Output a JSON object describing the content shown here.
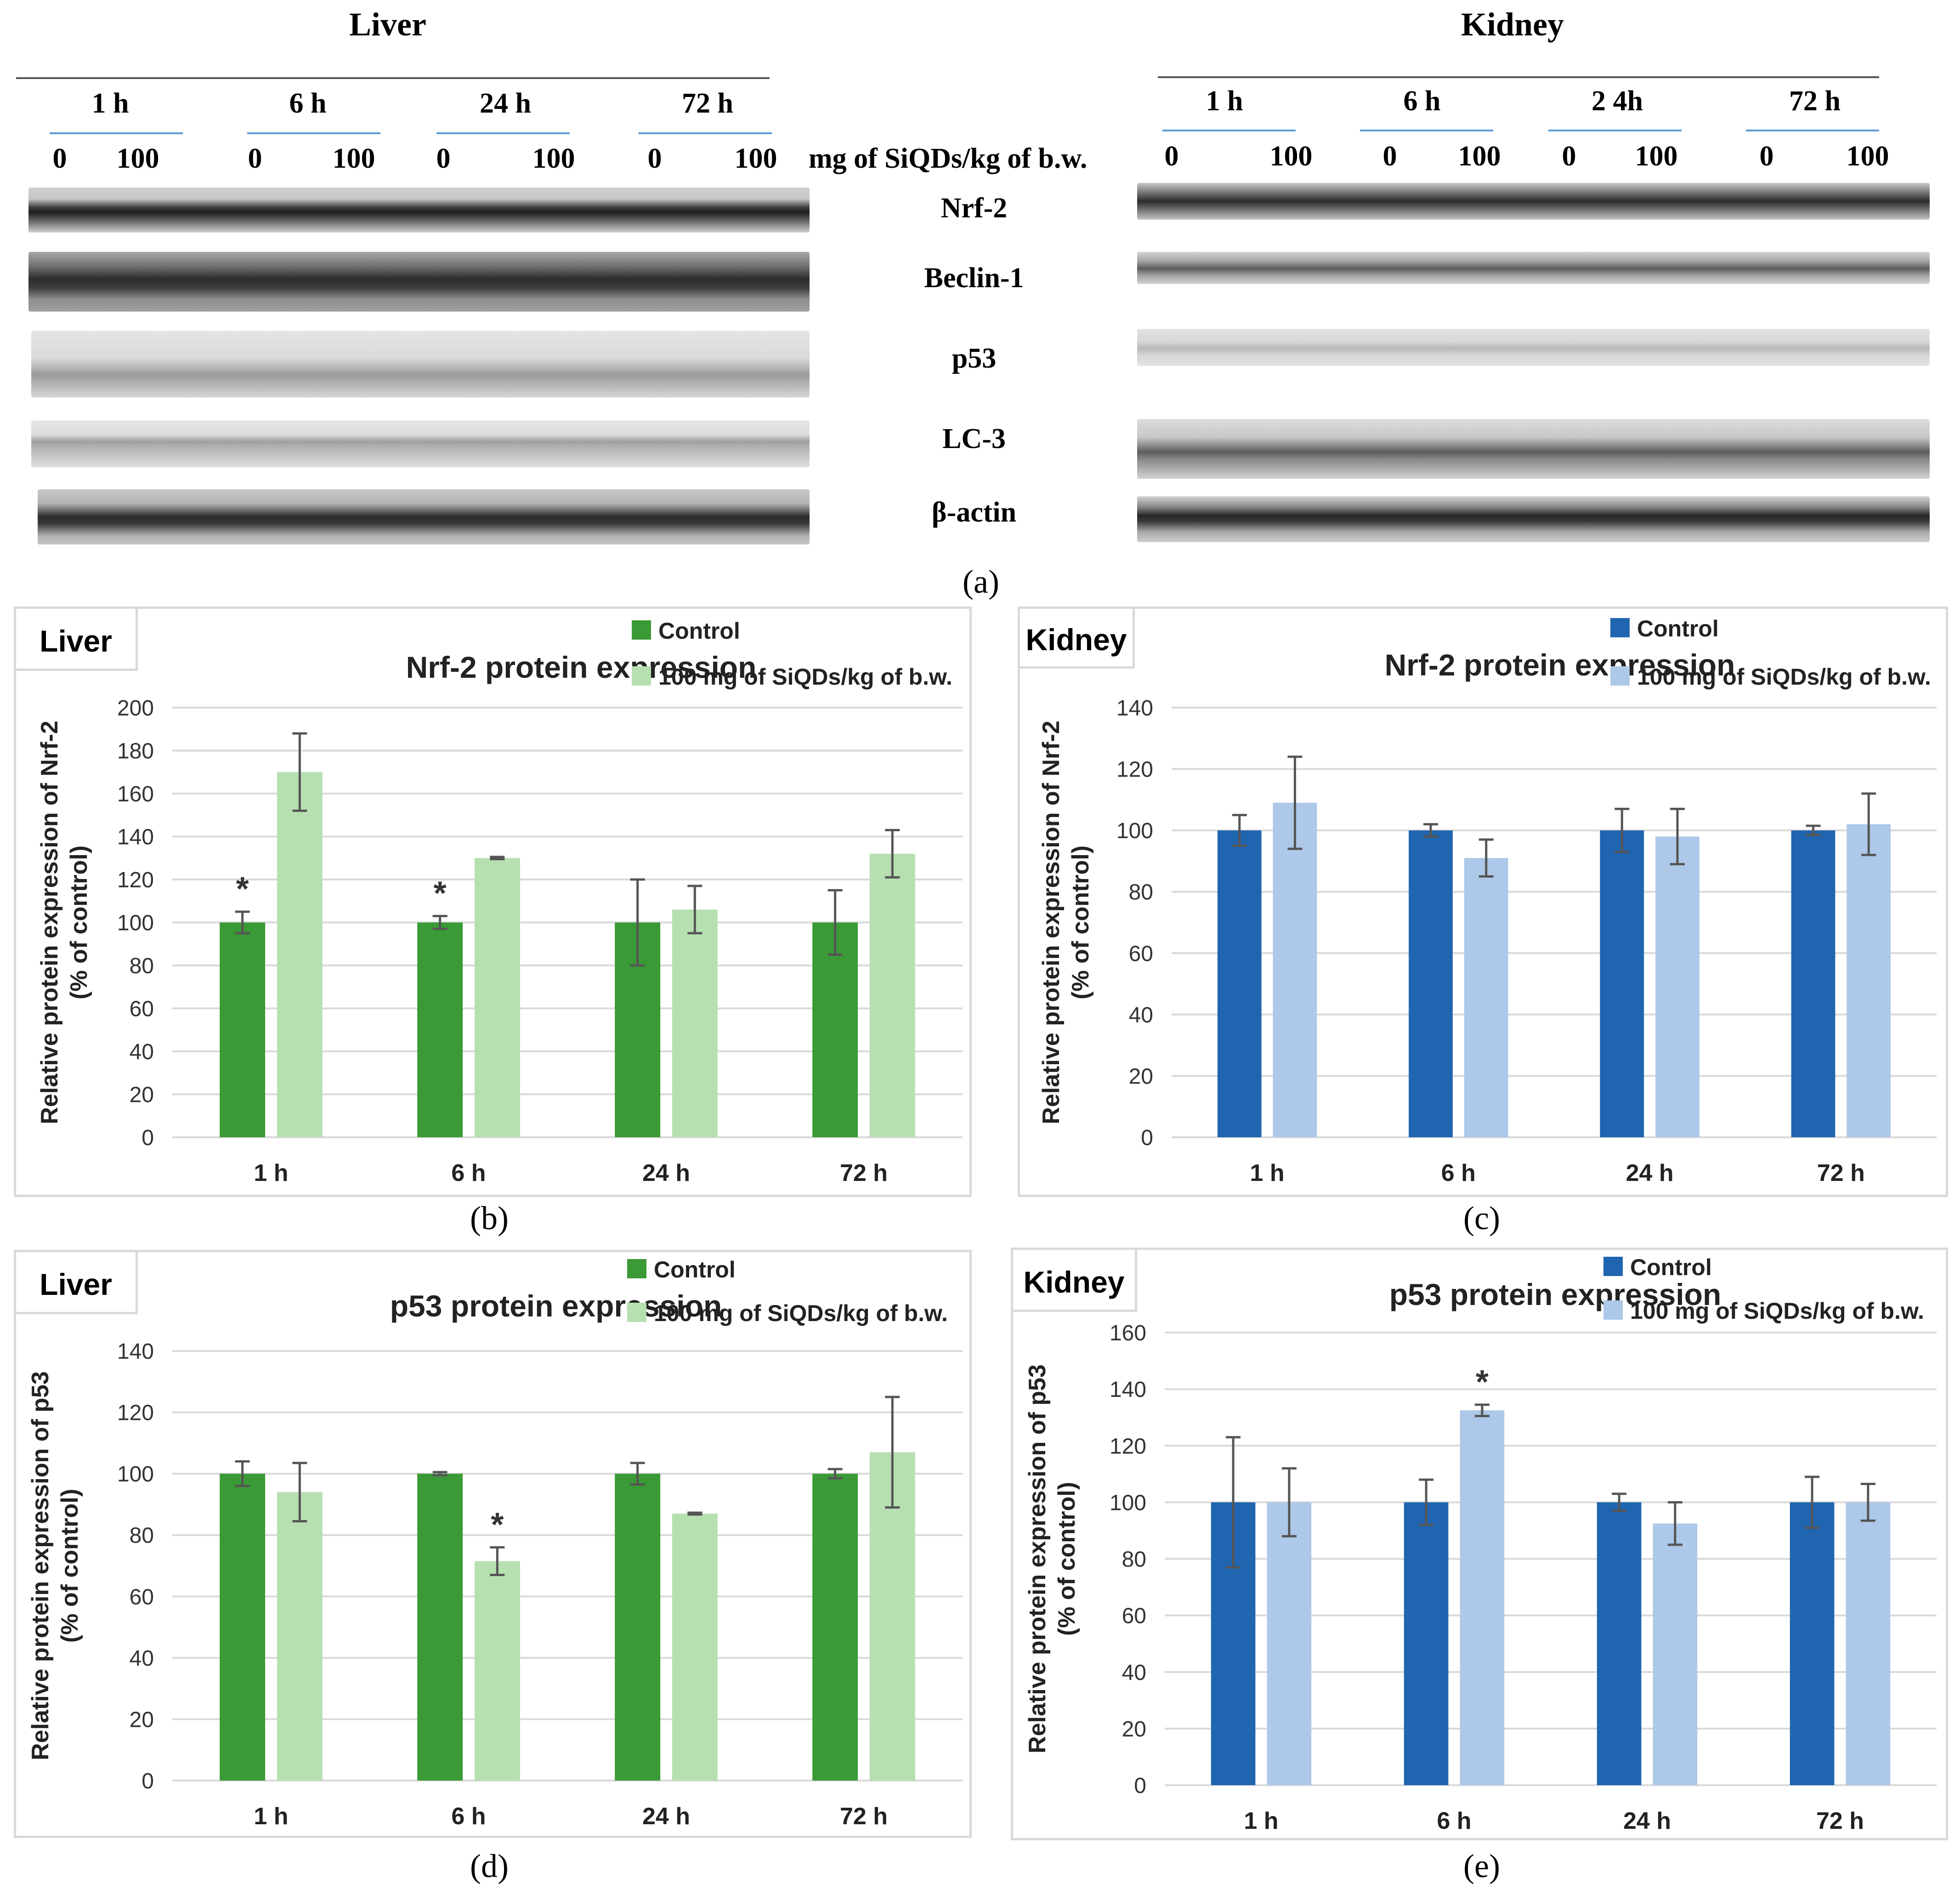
{
  "blots": {
    "liver_title": "Liver",
    "kidney_title": "Kidney",
    "liver_timepoints": [
      "1 h",
      "6 h",
      "24 h",
      "72 h"
    ],
    "kidney_timepoints": [
      "1 h",
      "6 h",
      "2 4h",
      "72 h"
    ],
    "doses": [
      "0",
      "100"
    ],
    "dose_unit": "mg of SiQDs/kg of b.w.",
    "proteins": [
      "Nrf-2",
      "Beclin-1",
      "p53",
      "LC-3",
      "β-actin"
    ],
    "panel_label": "(a)"
  },
  "colors": {
    "liver_control": "#3a9a35",
    "liver_treated": "#b6e0b0",
    "kidney_control": "#1f65b0",
    "kidney_treated": "#adc8e8",
    "grid": "#d9d9d9"
  },
  "chart_data": [
    {
      "type": "bar",
      "panel_label": "(b)",
      "tag": "Liver",
      "title": "Nrf-2 protein expression",
      "ylabel": "Relative protein expression of Nrf-2\n(% of control)",
      "categories": [
        "1 h",
        "6 h",
        "24 h",
        "72 h"
      ],
      "ylim": [
        0,
        200
      ],
      "ystep": 20,
      "series": [
        {
          "name": "Control",
          "values": [
            100,
            100,
            100,
            100
          ],
          "errors": [
            5,
            3,
            20,
            15
          ]
        },
        {
          "name": "100 mg of SiQDs/kg of b.w.",
          "values": [
            170,
            130,
            106,
            132
          ],
          "errors": [
            18,
            0.5,
            11,
            11
          ]
        }
      ],
      "significance": [
        [
          "*",
          ""
        ],
        [
          "*",
          ""
        ],
        [
          "",
          ""
        ],
        [
          "",
          ""
        ]
      ],
      "palette": "liver"
    },
    {
      "type": "bar",
      "panel_label": "(c)",
      "tag": "Kidney",
      "title": "Nrf-2 protein expression",
      "ylabel": "Relative protein expression of Nrf-2\n(% of control)",
      "categories": [
        "1 h",
        "6 h",
        "24 h",
        "72 h"
      ],
      "ylim": [
        0,
        140
      ],
      "ystep": 20,
      "series": [
        {
          "name": "Control",
          "values": [
            100,
            100,
            100,
            100
          ],
          "errors": [
            5,
            2,
            7,
            1.5
          ]
        },
        {
          "name": "100 mg of SiQDs/kg of b.w.",
          "values": [
            109,
            91,
            98,
            102
          ],
          "errors": [
            15,
            6,
            9,
            10
          ]
        }
      ],
      "significance": [
        [
          "",
          ""
        ],
        [
          "",
          ""
        ],
        [
          "",
          ""
        ],
        [
          "",
          ""
        ]
      ],
      "palette": "kidney"
    },
    {
      "type": "bar",
      "panel_label": "(d)",
      "tag": "Liver",
      "title": "p53 protein expression",
      "ylabel": "Relative protein expression of p53\n(% of control)",
      "categories": [
        "1 h",
        "6 h",
        "24 h",
        "72 h"
      ],
      "ylim": [
        0,
        140
      ],
      "ystep": 20,
      "series": [
        {
          "name": "Control",
          "values": [
            100,
            100,
            100,
            100
          ],
          "errors": [
            4,
            0.5,
            3.5,
            1.5
          ]
        },
        {
          "name": "100 mg of SiQDs/kg of b.w.",
          "values": [
            94,
            71.5,
            87,
            107
          ],
          "errors": [
            9.5,
            4.5,
            0.3,
            18
          ]
        }
      ],
      "significance": [
        [
          "",
          ""
        ],
        [
          "",
          "*"
        ],
        [
          "",
          ""
        ],
        [
          "",
          ""
        ]
      ],
      "palette": "liver"
    },
    {
      "type": "bar",
      "panel_label": "(e)",
      "tag": "Kidney",
      "title": "p53 protein expression",
      "ylabel": "Relative protein expression of p53\n(% of control)",
      "categories": [
        "1 h",
        "6 h",
        "24 h",
        "72 h"
      ],
      "ylim": [
        0,
        160
      ],
      "ystep": 20,
      "series": [
        {
          "name": "Control",
          "values": [
            100,
            100,
            100,
            100
          ],
          "errors": [
            23,
            8,
            3,
            9
          ]
        },
        {
          "name": "100 mg of SiQDs/kg of b.w.",
          "values": [
            100,
            132.5,
            92.5,
            100
          ],
          "errors": [
            12,
            2,
            7.5,
            6.5
          ]
        }
      ],
      "significance": [
        [
          "",
          ""
        ],
        [
          "",
          "*"
        ],
        [
          "",
          ""
        ],
        [
          "",
          ""
        ]
      ],
      "palette": "kidney"
    }
  ]
}
